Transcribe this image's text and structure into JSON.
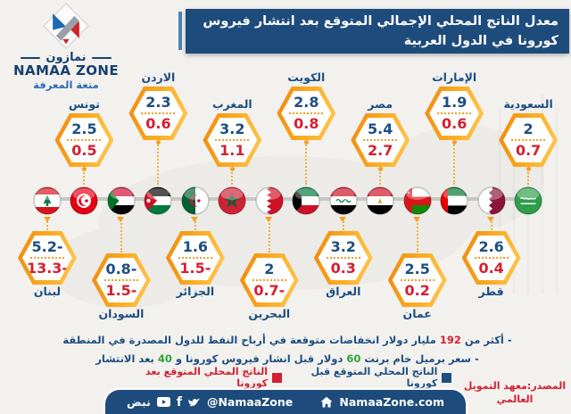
{
  "logo": {
    "name_ar": "نمازون",
    "name_en": "NAMAA ZONE",
    "tagline": "متعة المعرفة"
  },
  "title": "معدل الناتج المحلي الإجمالي المتوقع بعد انتشار فيروس كورونا في الدول العربية",
  "colors": {
    "navy": "#1d4e80",
    "red": "#d51f30",
    "green": "#2fa337",
    "orange": "#f7a31b",
    "title_bg": "#1d4b7c",
    "background": "#f2f1ee"
  },
  "countries": [
    {
      "key": "lebanon",
      "name": "لبنان",
      "flag": "lebanon-flag-icon",
      "before": -5.2,
      "after": -13.3,
      "before_label": "5.2-",
      "after_label": "13.3-",
      "row": "bottom",
      "pos": "near"
    },
    {
      "key": "tunisia",
      "name": "تونس",
      "flag": "tunisia-flag-icon",
      "before": 2.5,
      "after": 0.5,
      "before_label": "2.5",
      "after_label": "0.5",
      "row": "top",
      "pos": "near"
    },
    {
      "key": "sudan",
      "name": "السودان",
      "flag": "sudan-flag-icon",
      "before": -0.8,
      "after": -1.5,
      "before_label": "0.8-",
      "after_label": "1.5-",
      "row": "bottom",
      "pos": "far"
    },
    {
      "key": "jordan",
      "name": "الاردن",
      "flag": "jordan-flag-icon",
      "before": 2.3,
      "after": 0.6,
      "before_label": "2.3",
      "after_label": "0.6",
      "row": "top",
      "pos": "far"
    },
    {
      "key": "algeria",
      "name": "الجزائر",
      "flag": "algeria-flag-icon",
      "before": 1.6,
      "after": -1.5,
      "before_label": "1.6",
      "after_label": "1.5-",
      "row": "bottom",
      "pos": "near"
    },
    {
      "key": "morocco",
      "name": "المغرب",
      "flag": "morocco-flag-icon",
      "before": 3.2,
      "after": 1.1,
      "before_label": "3.2",
      "after_label": "1.1",
      "row": "top",
      "pos": "near"
    },
    {
      "key": "bahrain",
      "name": "البحرين",
      "flag": "bahrain-flag-icon",
      "before": 2,
      "after": -0.7,
      "before_label": "2",
      "after_label": "0.7-",
      "row": "bottom",
      "pos": "far"
    },
    {
      "key": "kuwait",
      "name": "الكويت",
      "flag": "kuwait-flag-icon",
      "before": 2.8,
      "after": 0.8,
      "before_label": "2.8",
      "after_label": "0.8",
      "row": "top",
      "pos": "far"
    },
    {
      "key": "iraq",
      "name": "العراق",
      "flag": "iraq-flag-icon",
      "before": 3.2,
      "after": 0.3,
      "before_label": "3.2",
      "after_label": "0.3",
      "row": "bottom",
      "pos": "near"
    },
    {
      "key": "egypt",
      "name": "مصر",
      "flag": "egypt-flag-icon",
      "before": 5.4,
      "after": 2.7,
      "before_label": "5.4",
      "after_label": "2.7",
      "row": "top",
      "pos": "near"
    },
    {
      "key": "oman",
      "name": "عمان",
      "flag": "oman-flag-icon",
      "before": 2.5,
      "after": 0.2,
      "before_label": "2.5",
      "after_label": "0.2",
      "row": "bottom",
      "pos": "far"
    },
    {
      "key": "uae",
      "name": "الإمارات",
      "flag": "uae-flag-icon",
      "before": 1.9,
      "after": 0.6,
      "before_label": "1.9",
      "after_label": "0.6",
      "row": "top",
      "pos": "far"
    },
    {
      "key": "qatar",
      "name": "قطر",
      "flag": "qatar-flag-icon",
      "before": 2.6,
      "after": 0.4,
      "before_label": "2.6",
      "after_label": "0.4",
      "row": "bottom",
      "pos": "near"
    },
    {
      "key": "saudi",
      "name": "السعودية",
      "flag": "saudi-flag-icon",
      "before": 2,
      "after": 0.7,
      "before_label": "2",
      "after_label": "0.7",
      "row": "top",
      "pos": "near"
    }
  ],
  "notes": [
    {
      "segments": [
        {
          "text": "- أكثر من ",
          "color": "#1d4e80"
        },
        {
          "text": "192",
          "color": "#d51f30"
        },
        {
          "text": " مليار دولار انخفاضات متوقعة في أرباح النفط للدول المصدرة في المنطقة",
          "color": "#1d4e80"
        }
      ]
    },
    {
      "segments": [
        {
          "text": "- سعر برميل خام برنت ",
          "color": "#1d4e80"
        },
        {
          "text": "60",
          "color": "#2fa337"
        },
        {
          "text": " دولار قبل انشار فيروس كورونا و ",
          "color": "#1d4e80"
        },
        {
          "text": "40",
          "color": "#2fa337"
        },
        {
          "text": " بعد الانتشار",
          "color": "#1d4e80"
        }
      ]
    }
  ],
  "legend": [
    {
      "label": "الناتج المحلي المتوقع قبل كورونا",
      "color": "#1d4e80"
    },
    {
      "label": "الناتج المحلي المتوقع بعد كورونا",
      "color": "#d51f30"
    }
  ],
  "source": "المصدر:معهد التمويل العالمي",
  "footer": {
    "nabd": "نبض",
    "handle": "@NamaaZone",
    "website": "NamaaZone.com"
  },
  "chart_data": {
    "type": "table",
    "title": "معدل الناتج المحلي الإجمالي المتوقع بعد انتشار فيروس كورونا في الدول العربية",
    "categories": [
      "لبنان",
      "تونس",
      "السودان",
      "الاردن",
      "الجزائر",
      "المغرب",
      "البحرين",
      "الكويت",
      "العراق",
      "مصر",
      "عمان",
      "الإمارات",
      "قطر",
      "السعودية"
    ],
    "series": [
      {
        "name": "الناتج المحلي المتوقع قبل كورونا",
        "color": "#1d4e80",
        "values": [
          -5.2,
          2.5,
          -0.8,
          2.3,
          1.6,
          3.2,
          2,
          2.8,
          3.2,
          5.4,
          2.5,
          1.9,
          2.6,
          2
        ]
      },
      {
        "name": "الناتج المحلي المتوقع بعد كورونا",
        "color": "#d51f30",
        "values": [
          -13.3,
          0.5,
          -1.5,
          0.6,
          -1.5,
          1.1,
          -0.7,
          0.8,
          0.3,
          2.7,
          0.2,
          0.6,
          0.4,
          0.7
        ]
      }
    ],
    "legend_position": "bottom",
    "annotations": [
      "- أكثر من 192 مليار دولار انخفاضات متوقعة في أرباح النفط للدول المصدرة في المنطقة",
      "- سعر برميل خام برنت 60 دولار قبل انشار فيروس كورونا و 40 بعد الانتشار"
    ],
    "source": "المصدر:معهد التمويل العالمي"
  }
}
